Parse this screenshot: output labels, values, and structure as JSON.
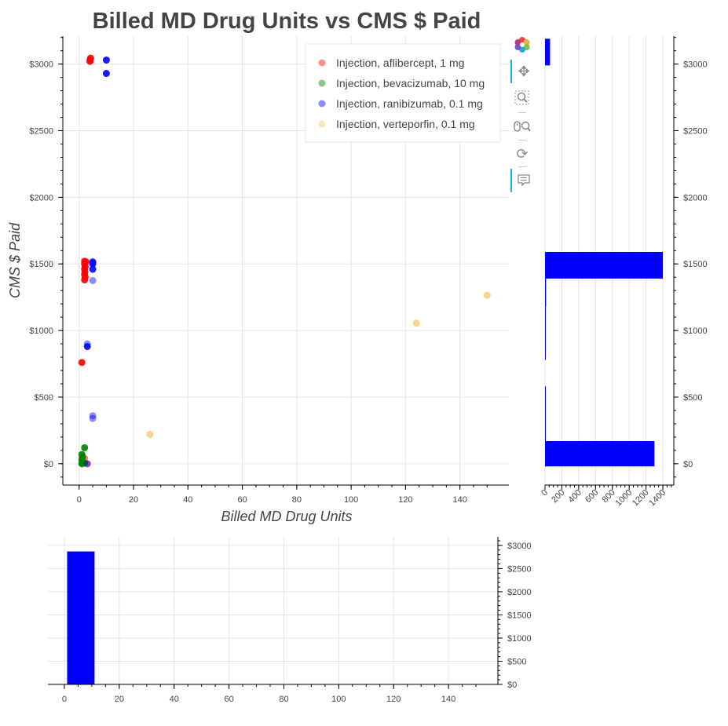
{
  "chart_data": [
    {
      "type": "scatter",
      "title": "Billed MD Drug Units vs CMS $ Paid",
      "xlabel": "Billed MD Drug Units",
      "ylabel": "CMS $ Paid",
      "xlim": [
        -6,
        158
      ],
      "ylim": [
        -160,
        3210
      ],
      "x_ticks": [
        "0",
        "20",
        "40",
        "60",
        "80",
        "100",
        "120",
        "140"
      ],
      "y_ticks": [
        "$0",
        "$500",
        "$1000",
        "$1500",
        "$2000",
        "$2500",
        "$3000"
      ],
      "grid": true,
      "legend_position": "top-right",
      "series": [
        {
          "name": "Injection, aflibercept, 1 mg",
          "color": "#ff0000",
          "points": [
            {
              "x": 4,
              "y": 3030,
              "a": 0.9
            },
            {
              "x": 4.2,
              "y": 3045,
              "a": 0.9
            },
            {
              "x": 4,
              "y": 3020,
              "a": 0.9
            },
            {
              "x": 2,
              "y": 1520,
              "a": 0.9
            },
            {
              "x": 2.5,
              "y": 1515,
              "a": 0.9
            },
            {
              "x": 2,
              "y": 1500,
              "a": 0.9
            },
            {
              "x": 2.2,
              "y": 1480,
              "a": 0.9
            },
            {
              "x": 2,
              "y": 1460,
              "a": 0.9
            },
            {
              "x": 2.1,
              "y": 1440,
              "a": 0.9
            },
            {
              "x": 2,
              "y": 1420,
              "a": 0.9
            },
            {
              "x": 2.2,
              "y": 1400,
              "a": 0.9
            },
            {
              "x": 2,
              "y": 1380,
              "a": 0.9
            },
            {
              "x": 1,
              "y": 760,
              "a": 0.9
            },
            {
              "x": 2,
              "y": 40,
              "a": 0.5
            },
            {
              "x": 3,
              "y": 0,
              "a": 0.5
            }
          ]
        },
        {
          "name": "Injection, bevacizumab, 10 mg",
          "color": "#008000",
          "points": [
            {
              "x": 2,
              "y": 120,
              "a": 0.9
            },
            {
              "x": 1,
              "y": 70,
              "a": 0.9
            },
            {
              "x": 1.2,
              "y": 50,
              "a": 0.9
            },
            {
              "x": 1,
              "y": 30,
              "a": 0.9
            },
            {
              "x": 1.1,
              "y": 10,
              "a": 0.9
            },
            {
              "x": 1,
              "y": 0,
              "a": 0.9
            },
            {
              "x": 2,
              "y": 5,
              "a": 0.9
            }
          ]
        },
        {
          "name": "Injection, ranibizumab, 0.1 mg",
          "color": "#0000ff",
          "points": [
            {
              "x": 10,
              "y": 3030,
              "a": 0.9
            },
            {
              "x": 10,
              "y": 2930,
              "a": 0.9
            },
            {
              "x": 5,
              "y": 1515,
              "a": 0.9
            },
            {
              "x": 5,
              "y": 1500,
              "a": 0.9
            },
            {
              "x": 5,
              "y": 1460,
              "a": 0.9
            },
            {
              "x": 5,
              "y": 1375,
              "a": 0.45
            },
            {
              "x": 3,
              "y": 900,
              "a": 0.45
            },
            {
              "x": 3,
              "y": 880,
              "a": 0.9
            },
            {
              "x": 5,
              "y": 360,
              "a": 0.45
            },
            {
              "x": 5,
              "y": 340,
              "a": 0.45
            },
            {
              "x": 3,
              "y": 0,
              "a": 0.45
            }
          ]
        },
        {
          "name": "Injection, verteporfin, 0.1 mg",
          "color": "#f5c464",
          "points": [
            {
              "x": 150,
              "y": 1265,
              "a": 0.75
            },
            {
              "x": 124,
              "y": 1055,
              "a": 0.75
            },
            {
              "x": 26,
              "y": 220,
              "a": 0.75
            }
          ]
        }
      ]
    },
    {
      "type": "bar",
      "orientation": "horizontal",
      "x_ticks": [
        "0",
        "200",
        "400",
        "600",
        "800",
        "1000",
        "1200",
        "1400"
      ],
      "xlim": [
        0,
        1530
      ],
      "y_ticks": [
        "$0",
        "$500",
        "$1000",
        "$1500",
        "$2000",
        "$2500",
        "$3000"
      ],
      "ylim": [
        -160,
        3210
      ],
      "bins": [
        {
          "low": -20,
          "high": 170,
          "count": 1300
        },
        {
          "low": 170,
          "high": 370,
          "count": 2
        },
        {
          "low": 370,
          "high": 580,
          "count": 1
        },
        {
          "low": 580,
          "high": 780,
          "count": 0
        },
        {
          "low": 780,
          "high": 980,
          "count": 6
        },
        {
          "low": 980,
          "high": 1180,
          "count": 6
        },
        {
          "low": 1180,
          "high": 1390,
          "count": 12
        },
        {
          "low": 1390,
          "high": 1590,
          "count": 1400
        },
        {
          "low": 1590,
          "high": 2990,
          "count": 0
        },
        {
          "low": 2990,
          "high": 3190,
          "count": 60
        }
      ]
    },
    {
      "type": "bar",
      "x_ticks": [
        "0",
        "20",
        "40",
        "60",
        "80",
        "100",
        "120",
        "140"
      ],
      "xlim": [
        -6,
        158
      ],
      "y_ticks": [
        "$0",
        "$500",
        "$1000",
        "$1500",
        "$2000",
        "$2500",
        "$3000"
      ],
      "ylim": [
        0,
        3100
      ],
      "bins": [
        {
          "low": 1,
          "high": 11,
          "count": 2870
        }
      ]
    }
  ],
  "toolbar": {
    "logo_icon": "bokeh-logo-icon",
    "tools": [
      "pan-icon",
      "box-zoom-icon",
      "wheel-zoom-icon",
      "reset-icon",
      "hover-icon"
    ]
  }
}
